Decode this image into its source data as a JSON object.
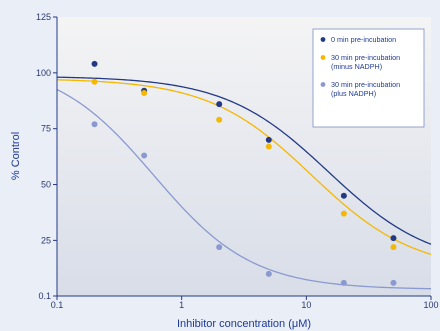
{
  "chart_data": {
    "type": "scatter",
    "xscale": "log",
    "xlim": [
      0.1,
      100
    ],
    "ylim": [
      0.1,
      125
    ],
    "xticks": [
      "0.1",
      "1",
      "10",
      "100"
    ],
    "yticks": [
      "0.1",
      "25",
      "50",
      "75",
      "100",
      "125"
    ],
    "xlabel": "Inhibitor concentration (μM)",
    "ylabel": "% Control",
    "grid": false,
    "legend_position": "top-right",
    "series": [
      {
        "name": "0 min pre-incubation",
        "color": "#223a85",
        "points": [
          [
            0.2,
            104
          ],
          [
            0.5,
            92
          ],
          [
            2,
            86
          ],
          [
            5,
            70
          ],
          [
            20,
            45
          ],
          [
            50,
            26
          ]
        ],
        "fit": {
          "top": 98.5,
          "bottom": 13,
          "ic50": 15,
          "hill": 1.05
        }
      },
      {
        "name": "30 min pre-incubation (minus NADPH)",
        "label_lines": [
          "30 min pre-incubation",
          "(minus NADPH)"
        ],
        "color": "#f5b800",
        "points": [
          [
            0.2,
            96
          ],
          [
            0.5,
            91
          ],
          [
            2,
            79
          ],
          [
            5,
            67
          ],
          [
            20,
            37
          ],
          [
            50,
            22
          ]
        ],
        "fit": {
          "top": 97.5,
          "bottom": 11,
          "ic50": 11,
          "hill": 1.05
        }
      },
      {
        "name": "30 min pre-incubation (plus NADPH)",
        "label_lines": [
          "30 min pre-incubation",
          "(plus NADPH)"
        ],
        "color": "#8a9ad0",
        "points": [
          [
            0.2,
            77
          ],
          [
            0.5,
            63
          ],
          [
            2,
            22
          ],
          [
            5,
            10
          ],
          [
            20,
            6
          ],
          [
            50,
            6
          ]
        ],
        "fit": {
          "top": 105,
          "bottom": 3,
          "ic50": 0.6,
          "hill": 1.1
        }
      }
    ]
  }
}
